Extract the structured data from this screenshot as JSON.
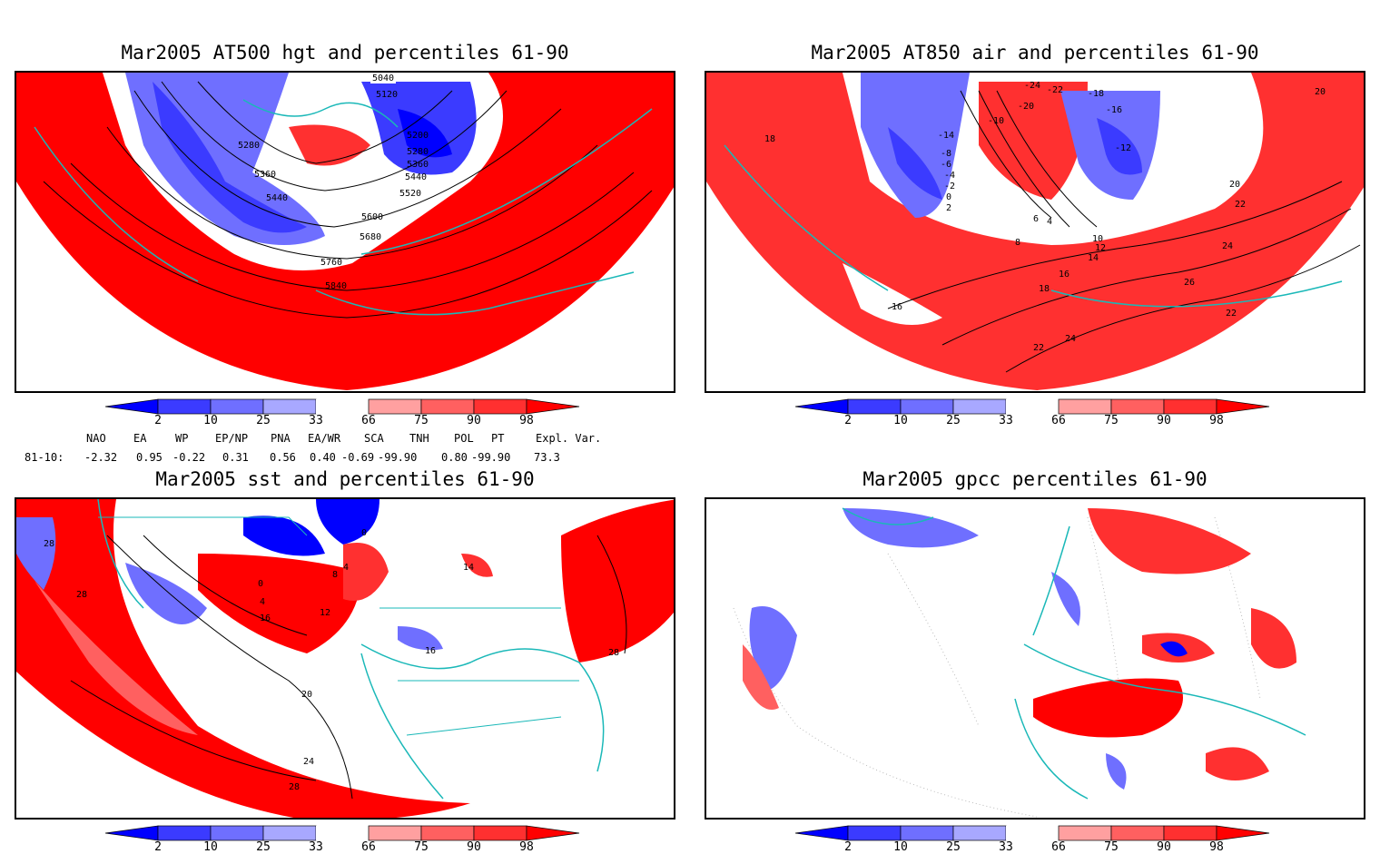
{
  "panels": [
    {
      "title": "Mar2005 AT500 hgt and percentiles 61-90",
      "contour_labels": [
        "5040",
        "5120",
        "5200",
        "5280",
        "5360",
        "5440",
        "5520",
        "5600",
        "5680",
        "5760",
        "5840",
        "5280",
        "5360",
        "5440"
      ]
    },
    {
      "title": "Mar2005 AT850 air and percentiles 61-90",
      "contour_labels": [
        "-24",
        "-22",
        "-18",
        "-20",
        "-16",
        "-14",
        "-12",
        "-10",
        "-8",
        "-6",
        "-4",
        "-2",
        "0",
        "2",
        "4",
        "6",
        "8",
        "10",
        "12",
        "14",
        "16",
        "18",
        "20",
        "22",
        "24",
        "26",
        "18",
        "16",
        "20",
        "22",
        "24",
        "22"
      ]
    },
    {
      "title": "Mar2005 sst and percentiles 61-90",
      "contour_labels": [
        "28",
        "28",
        "0",
        "4",
        "8",
        "12",
        "16",
        "20",
        "24",
        "28",
        "16",
        "14",
        "4",
        "0",
        "28"
      ]
    },
    {
      "title": "Mar2005 gpcc percentiles 61-90",
      "contour_labels": []
    }
  ],
  "colorbar": {
    "ticks": [
      "2",
      "10",
      "25",
      "33",
      "66",
      "75",
      "90",
      "98"
    ],
    "colors": [
      "#0000ff",
      "#3b3bff",
      "#6f6fff",
      "#a8a8ff",
      "#ffffff",
      "#ffa0a0",
      "#ff6060",
      "#ff3030",
      "#ff0000"
    ]
  },
  "indices": {
    "headers": [
      "NAO",
      "EA",
      "WP",
      "EP/NP",
      "PNA",
      "EA/WR",
      "SCA",
      "TNH",
      "POL",
      "PT",
      "Expl. Var."
    ],
    "row_label": "81-10:",
    "values": [
      "-2.32",
      "0.95",
      "-0.22",
      "0.31",
      "0.56",
      "0.40",
      "-0.69",
      "-99.90",
      "0.80",
      "-99.90",
      "73.3"
    ]
  },
  "colors": {
    "high": "#ff0000",
    "low": "#0000ff",
    "coast": "#1ab8b8",
    "contour": "#000000"
  }
}
